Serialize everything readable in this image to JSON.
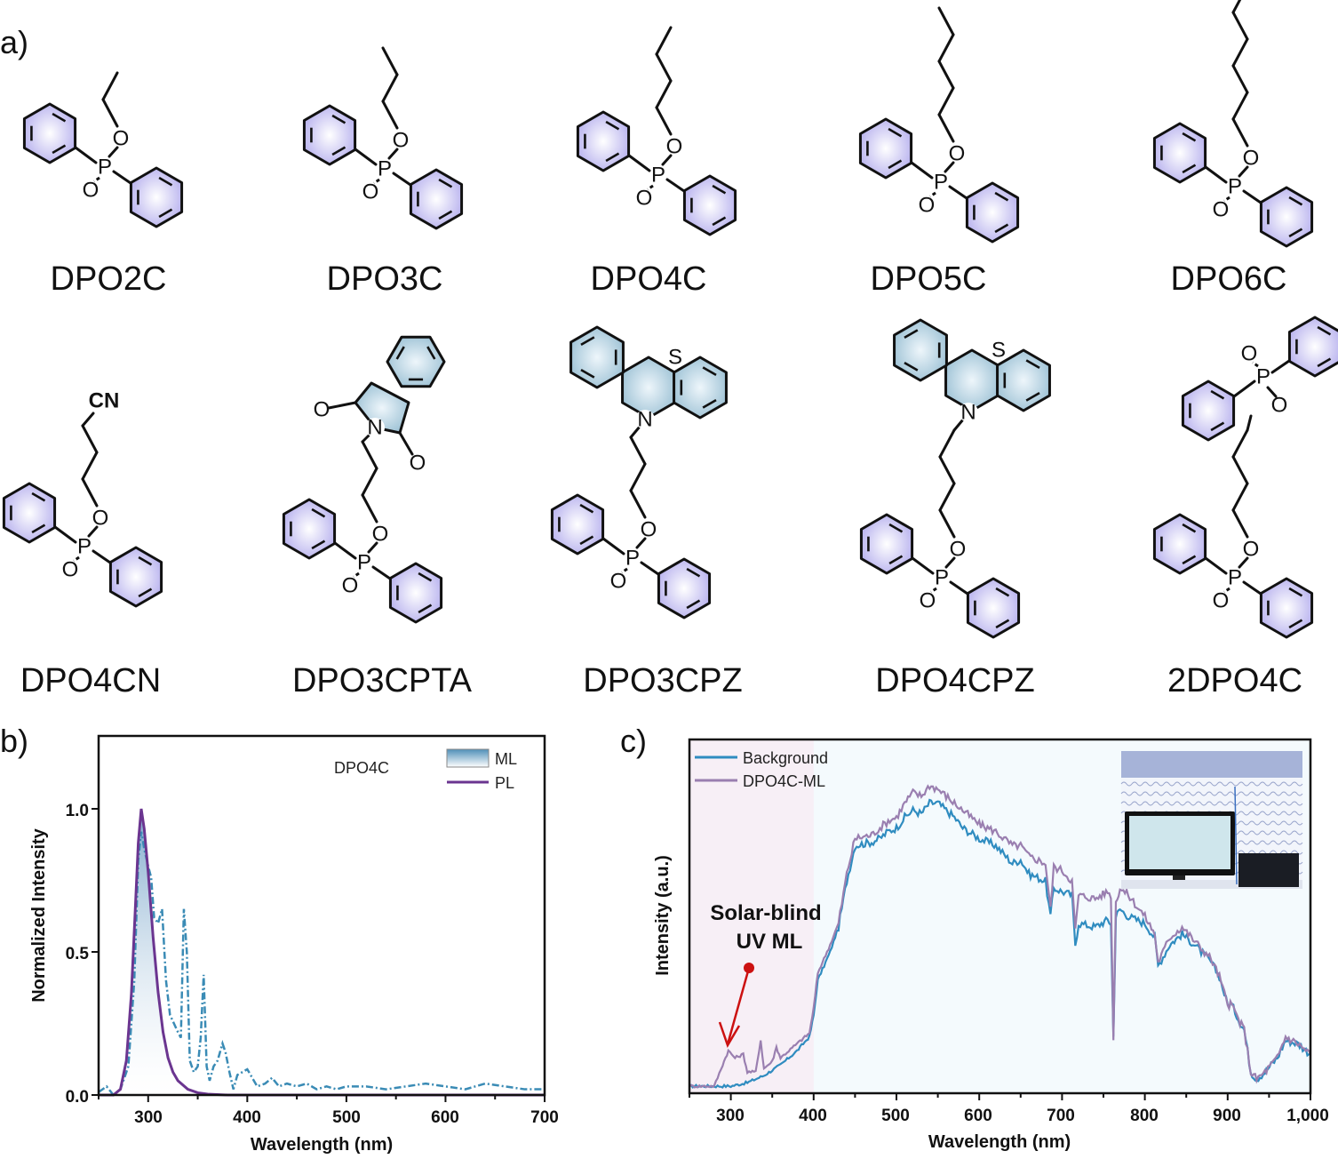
{
  "panels": {
    "a": "a)",
    "b": "b)",
    "c": "c)"
  },
  "atoms": {
    "P": "P",
    "O": "O",
    "N": "N",
    "S": "S",
    "CN": "CN"
  },
  "colors": {
    "phenyl": "#b8b2ee",
    "heteroring": "#9fc3d6",
    "ml": "#3a8bb5",
    "pl": "#6b3590",
    "background": "#2f8cc0",
    "dpo4c_ml": "#9a7fb0",
    "arrow": "#cc1111"
  },
  "molecules": [
    {
      "name": "DPO2C",
      "chain": 2,
      "terminal": "none"
    },
    {
      "name": "DPO3C",
      "chain": 3,
      "terminal": "none"
    },
    {
      "name": "DPO4C",
      "chain": 4,
      "terminal": "none"
    },
    {
      "name": "DPO5C",
      "chain": 5,
      "terminal": "none"
    },
    {
      "name": "DPO6C",
      "chain": 6,
      "terminal": "none"
    },
    {
      "name": "DPO4CN",
      "chain": 3,
      "terminal": "CN"
    },
    {
      "name": "DPO3CPTA",
      "chain": 3,
      "terminal": "phthalimide"
    },
    {
      "name": "DPO3CPZ",
      "chain": 3,
      "terminal": "phenothiazine"
    },
    {
      "name": "DPO4CPZ",
      "chain": 4,
      "terminal": "phenothiazine"
    },
    {
      "name": "2DPO4C",
      "chain": 4,
      "terminal": "DPO"
    }
  ],
  "chart_data": [
    {
      "type": "line",
      "panel": "b",
      "annotation": "DPO4C",
      "xlabel": "Wavelength (nm)",
      "ylabel": "Normalized Intensity",
      "xlim": [
        250,
        700
      ],
      "ylim": [
        0,
        1.25
      ],
      "xticks": [
        "300",
        "400",
        "500",
        "600",
        "700"
      ],
      "yticks": [
        "0.0",
        "0.5",
        "1.0"
      ],
      "legend": [
        "ML",
        "PL"
      ],
      "legend_position": "top-right",
      "series": [
        {
          "name": "ML",
          "style": "dash-dot filled",
          "x": [
            250,
            258,
            265,
            272,
            280,
            286,
            290,
            293,
            296,
            300,
            303,
            306,
            310,
            314,
            318,
            322,
            326,
            330,
            333,
            336,
            339,
            342,
            346,
            350,
            353,
            356,
            359,
            362,
            366,
            370,
            375,
            378,
            382,
            386,
            390,
            395,
            400,
            405,
            410,
            418,
            425,
            432,
            440,
            450,
            460,
            470,
            480,
            490,
            500,
            520,
            540,
            560,
            580,
            600,
            620,
            640,
            660,
            680,
            700
          ],
          "y": [
            0.01,
            0.03,
            0.0,
            0.02,
            0.1,
            0.4,
            0.82,
            0.92,
            0.86,
            0.8,
            0.76,
            0.62,
            0.6,
            0.65,
            0.4,
            0.28,
            0.25,
            0.22,
            0.2,
            0.65,
            0.5,
            0.12,
            0.08,
            0.1,
            0.2,
            0.42,
            0.1,
            0.05,
            0.1,
            0.12,
            0.18,
            0.15,
            0.08,
            0.02,
            0.07,
            0.08,
            0.09,
            0.06,
            0.03,
            0.04,
            0.06,
            0.03,
            0.04,
            0.03,
            0.04,
            0.02,
            0.03,
            0.02,
            0.03,
            0.03,
            0.02,
            0.03,
            0.04,
            0.03,
            0.02,
            0.04,
            0.03,
            0.02,
            0.02
          ]
        },
        {
          "name": "PL",
          "style": "solid",
          "x": [
            250,
            265,
            272,
            278,
            283,
            287,
            290,
            293,
            296,
            300,
            305,
            310,
            315,
            320,
            325,
            330,
            340,
            350,
            360,
            380,
            400,
            500,
            700
          ],
          "y": [
            0,
            0,
            0.02,
            0.12,
            0.35,
            0.65,
            0.88,
            1.0,
            0.93,
            0.78,
            0.55,
            0.36,
            0.22,
            0.13,
            0.08,
            0.05,
            0.02,
            0.008,
            0.003,
            0,
            0,
            0,
            0
          ]
        }
      ]
    },
    {
      "type": "line",
      "panel": "c",
      "xlabel": "Wavelength (nm)",
      "ylabel": "Intensity (a.u.)",
      "xlim": [
        250,
        1000
      ],
      "ylim": [
        0,
        100
      ],
      "xticks": [
        "300",
        "400",
        "500",
        "600",
        "700",
        "800",
        "900",
        "1,000"
      ],
      "legend": [
        "Background",
        "DPO4C-ML"
      ],
      "legend_position": "top-left",
      "shaded_region": [
        250,
        400
      ],
      "annotation": [
        "Solar-blind",
        "UV ML"
      ],
      "series": [
        {
          "name": "Background",
          "x": [
            250,
            280,
            300,
            320,
            340,
            360,
            380,
            395,
            400,
            405,
            420,
            430,
            440,
            450,
            470,
            480,
            490,
            500,
            510,
            520,
            530,
            540,
            550,
            560,
            570,
            580,
            600,
            620,
            640,
            650,
            660,
            680,
            686,
            690,
            700,
            712,
            716,
            720,
            740,
            755,
            759,
            762,
            765,
            770,
            780,
            800,
            812,
            816,
            830,
            845,
            860,
            880,
            890,
            900,
            905,
            915,
            920,
            928,
            935,
            945,
            960,
            970,
            985,
            1000
          ],
          "y": [
            2,
            2,
            2,
            3,
            5,
            8,
            12,
            16,
            22,
            32,
            40,
            47,
            60,
            70,
            71,
            72,
            74,
            75,
            78,
            80,
            79,
            82,
            82,
            80,
            78,
            75,
            72,
            70,
            65,
            66,
            62,
            60,
            50,
            58,
            57,
            56,
            42,
            48,
            47,
            49,
            48,
            16,
            50,
            52,
            50,
            48,
            44,
            36,
            42,
            45,
            42,
            37,
            33,
            25,
            25,
            20,
            18,
            6,
            4,
            6,
            10,
            15,
            14,
            11
          ]
        },
        {
          "name": "DPO4C-ML",
          "x": [
            250,
            280,
            290,
            297,
            305,
            315,
            320,
            330,
            336,
            340,
            350,
            355,
            360,
            370,
            380,
            395,
            400,
            405,
            420,
            430,
            440,
            450,
            470,
            480,
            490,
            500,
            510,
            520,
            530,
            540,
            550,
            560,
            570,
            580,
            600,
            620,
            640,
            650,
            660,
            680,
            686,
            690,
            700,
            712,
            716,
            720,
            740,
            755,
            759,
            762,
            765,
            770,
            780,
            800,
            812,
            816,
            830,
            845,
            860,
            880,
            890,
            900,
            905,
            915,
            920,
            928,
            935,
            945,
            960,
            970,
            985,
            1000
          ],
          "y": [
            2,
            2,
            8,
            12,
            10,
            11,
            6,
            6,
            15,
            7,
            9,
            13,
            10,
            12,
            14,
            17,
            24,
            34,
            42,
            48,
            62,
            72,
            73,
            75,
            77,
            78,
            82,
            85,
            84,
            87,
            86,
            84,
            82,
            80,
            76,
            74,
            70,
            70,
            67,
            65,
            52,
            64,
            63,
            60,
            46,
            56,
            55,
            57,
            56,
            16,
            54,
            58,
            56,
            50,
            45,
            37,
            44,
            47,
            43,
            38,
            33,
            25,
            25,
            20,
            18,
            6,
            4,
            6,
            10,
            16,
            14,
            11
          ]
        }
      ]
    }
  ]
}
